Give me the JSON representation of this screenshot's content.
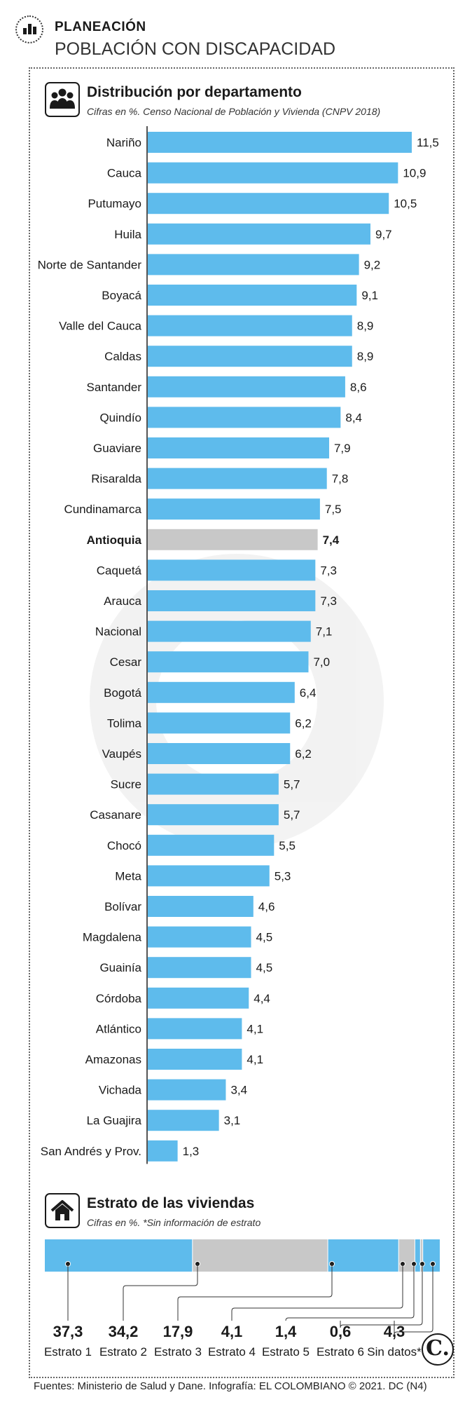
{
  "header": {
    "kicker": "PLANEACIÓN",
    "title": "POBLACIÓN CON DISCAPACIDAD"
  },
  "section1": {
    "icon": "people-icon",
    "title": "Distribución por departamento",
    "subtitle": "Cifras en %. Censo Nacional de Población y Vivienda (CNPV 2018)"
  },
  "section2": {
    "icon": "house-icon",
    "title": "Estrato de las viviendas",
    "subtitle": "Cifras en %. *Sin información de estrato"
  },
  "footer": {
    "source": "Fuentes: Ministerio de Salud y Dane. Infografía: EL COLOMBIANO © 2021. DC (N4)"
  },
  "logo": {
    "text": "C."
  },
  "colors": {
    "bar": "#5ebbec",
    "highlight": "#c8c8c8",
    "axis": "#555555"
  },
  "chart_data": [
    {
      "type": "bar",
      "orientation": "horizontal",
      "title": "Distribución por departamento",
      "subtitle": "Cifras en %. Censo Nacional de Población y Vivienda (CNPV 2018)",
      "highlight": "Antioquia",
      "categories": [
        "Nariño",
        "Cauca",
        "Putumayo",
        "Huila",
        "Norte de Santander",
        "Boyacá",
        "Valle del Cauca",
        "Caldas",
        "Santander",
        "Quindío",
        "Guaviare",
        "Risaralda",
        "Cundinamarca",
        "Antioquia",
        "Caquetá",
        "Arauca",
        "Nacional",
        "Cesar",
        "Bogotá",
        "Tolima",
        "Vaupés",
        "Sucre",
        "Casanare",
        "Chocó",
        "Meta",
        "Bolívar",
        "Magdalena",
        "Guainía",
        "Córdoba",
        "Atlántico",
        "Amazonas",
        "Vichada",
        "La Guajira",
        "San Andrés y Prov."
      ],
      "values": [
        11.5,
        10.9,
        10.5,
        9.7,
        9.2,
        9.1,
        8.9,
        8.9,
        8.6,
        8.4,
        7.9,
        7.8,
        7.5,
        7.4,
        7.3,
        7.3,
        7.1,
        7.0,
        6.4,
        6.2,
        6.2,
        5.7,
        5.7,
        5.5,
        5.3,
        4.6,
        4.5,
        4.5,
        4.4,
        4.1,
        4.1,
        3.4,
        3.1,
        1.3
      ],
      "value_labels": [
        "11,5",
        "10,9",
        "10,5",
        "9,7",
        "9,2",
        "9,1",
        "8,9",
        "8,9",
        "8,6",
        "8,4",
        "7,9",
        "7,8",
        "7,5",
        "7,4",
        "7,3",
        "7,3",
        "7,1",
        "7,0",
        "6,4",
        "6,2",
        "6,2",
        "5,7",
        "5,7",
        "5,5",
        "5,3",
        "4,6",
        "4,5",
        "4,5",
        "4,4",
        "4,1",
        "4,1",
        "3,4",
        "3,1",
        "1,3"
      ],
      "xlim": [
        0,
        11.5
      ]
    },
    {
      "type": "bar",
      "orientation": "stacked-horizontal",
      "title": "Estrato de las viviendas",
      "subtitle": "Cifras en %. *Sin información de estrato",
      "categories": [
        "Estrato 1",
        "Estrato 2",
        "Estrato 3",
        "Estrato 4",
        "Estrato 5",
        "Estrato 6",
        "Sin datos*"
      ],
      "values": [
        37.3,
        34.2,
        17.9,
        4.1,
        1.4,
        0.6,
        4.3
      ],
      "value_labels": [
        "37,3",
        "34,2",
        "17,9",
        "4,1",
        "1,4",
        "0,6",
        "4,3"
      ],
      "segment_colors": [
        "#5ebbec",
        "#c8c8c8",
        "#5ebbec",
        "#c8c8c8",
        "#5ebbec",
        "#c8c8c8",
        "#5ebbec"
      ]
    }
  ]
}
